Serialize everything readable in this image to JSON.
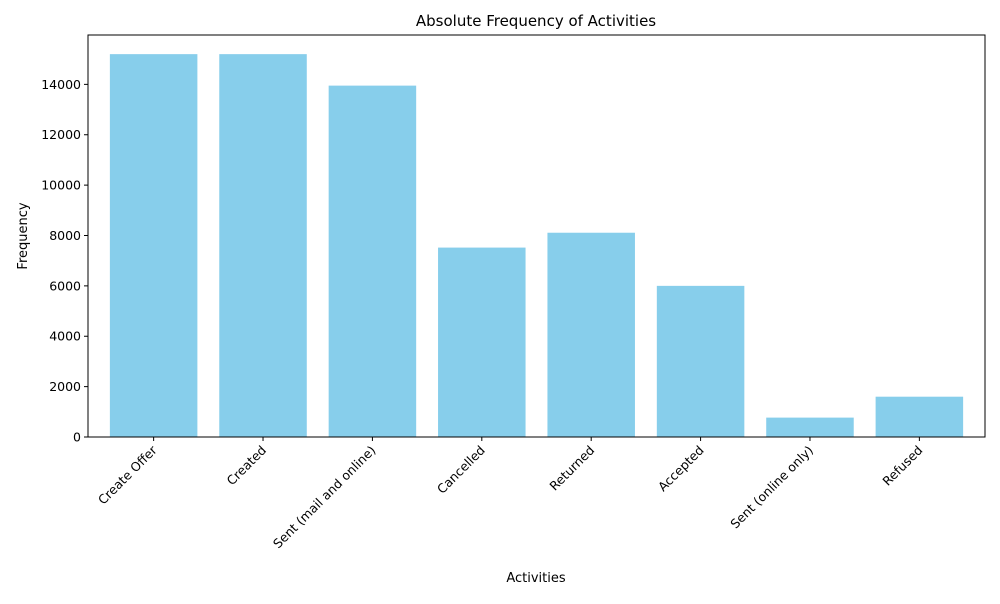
{
  "chart_data": {
    "type": "bar",
    "title": "Absolute Frequency of Activities",
    "xlabel": "Activities",
    "ylabel": "Frequency",
    "categories": [
      "Create Offer",
      "Created",
      "Sent (mail and online)",
      "Cancelled",
      "Returned",
      "Accepted",
      "Sent (online only)",
      "Refused"
    ],
    "values": [
      15200,
      15200,
      13950,
      7520,
      8110,
      6000,
      770,
      1600
    ],
    "ylim": [
      0,
      15960
    ],
    "yticks": [
      0,
      2000,
      4000,
      6000,
      8000,
      10000,
      12000,
      14000
    ],
    "grid": false,
    "bar_color": "#87ceeb",
    "x_tick_rotation": 45
  }
}
